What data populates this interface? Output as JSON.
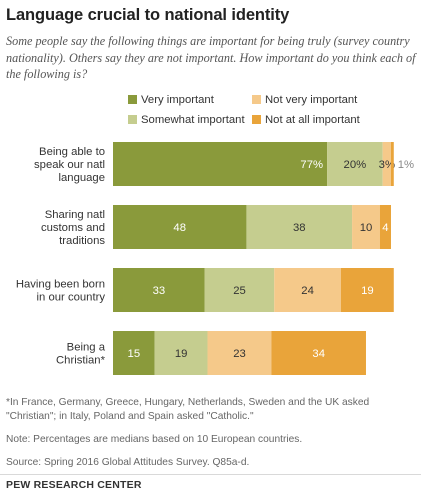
{
  "title": "Language crucial to national identity",
  "subtitle": "Some people say the following things are important for being truly (survey country nationality). Others say they are not important. How important do you think each of the following is?",
  "notes": {
    "footnote": "*In France, Germany, Greece, Hungary, Netherlands, Sweden and the UK asked \"Christian\"; in Italy, Poland and Spain asked \"Catholic.\"",
    "note": "Note: Percentages are medians based on 10 European countries.",
    "source": "Source: Spring 2016 Global Attitudes Survey. Q85a-d."
  },
  "brand": "PEW RESEARCH CENTER",
  "colors": {
    "very_important": "#8a9a3b",
    "somewhat_important": "#c5cd8f",
    "not_very_important": "#f5c98a",
    "not_at_all_important": "#e9a43a"
  },
  "chart_data": {
    "type": "bar",
    "orientation": "horizontal",
    "stacked": true,
    "categories": [
      [
        "Being able to",
        "speak our natl",
        "language"
      ],
      [
        "Sharing natl",
        "customs and",
        "traditions"
      ],
      [
        "Having been born",
        "in our country"
      ],
      [
        "Being a",
        "Christian*"
      ]
    ],
    "series": [
      {
        "name": "Very important",
        "values": [
          77,
          48,
          33,
          15
        ],
        "labels": [
          "77%",
          "48",
          "33",
          "15"
        ]
      },
      {
        "name": "Somewhat important",
        "values": [
          20,
          38,
          25,
          19
        ],
        "labels": [
          "20%",
          "38",
          "25",
          "19"
        ]
      },
      {
        "name": "Not very important",
        "values": [
          3,
          10,
          24,
          23
        ],
        "labels": [
          "3%",
          "10",
          "24",
          "23"
        ]
      },
      {
        "name": "Not at all important",
        "values": [
          1,
          4,
          19,
          34
        ],
        "labels": [
          "1%",
          "4",
          "19",
          "34"
        ]
      }
    ],
    "xlim": [
      0,
      100
    ],
    "legend_position": "top",
    "grid": false
  }
}
